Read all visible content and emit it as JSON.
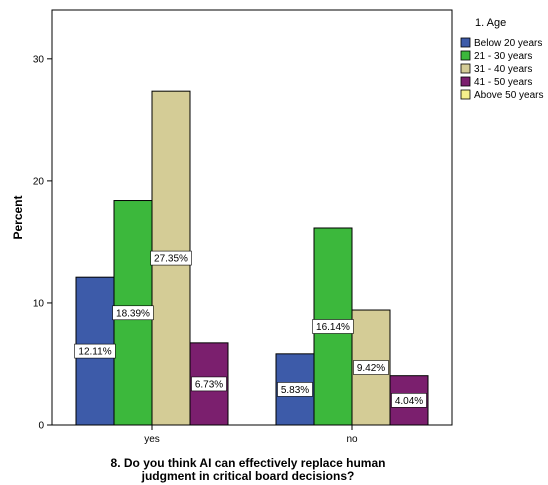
{
  "chart_data": {
    "type": "bar",
    "categories": [
      "yes",
      "no"
    ],
    "series": [
      {
        "name": "Below 20 years",
        "color": "#3d5ba9",
        "values": [
          12.11,
          5.83
        ]
      },
      {
        "name": "21 - 30 years",
        "color": "#3cb83c",
        "values": [
          18.39,
          16.14
        ]
      },
      {
        "name": "31 - 40 years",
        "color": "#d4cc96",
        "values": [
          27.35,
          9.42
        ]
      },
      {
        "name": "41 - 50 years",
        "color": "#7b1f6e",
        "values": [
          6.73,
          4.04
        ]
      },
      {
        "name": "Above 50 years",
        "color": "#f5f08c",
        "values": [
          0,
          0
        ]
      }
    ],
    "data_labels": [
      [
        "12.11%",
        "5.83%"
      ],
      [
        "18.39%",
        "16.14%"
      ],
      [
        "27.35%",
        "9.42%"
      ],
      [
        "6.73%",
        "4.04%"
      ],
      [
        "",
        ""
      ]
    ],
    "title": "",
    "xlabel_lines": [
      "8. Do you think AI can effectively replace human",
      "judgment in critical board decisions?"
    ],
    "ylabel": "Percent",
    "ylim": [
      0,
      34
    ],
    "yticks": [
      0,
      10,
      20,
      30
    ],
    "grid": false,
    "legend": {
      "title": "1. Age",
      "placement": "right"
    }
  }
}
